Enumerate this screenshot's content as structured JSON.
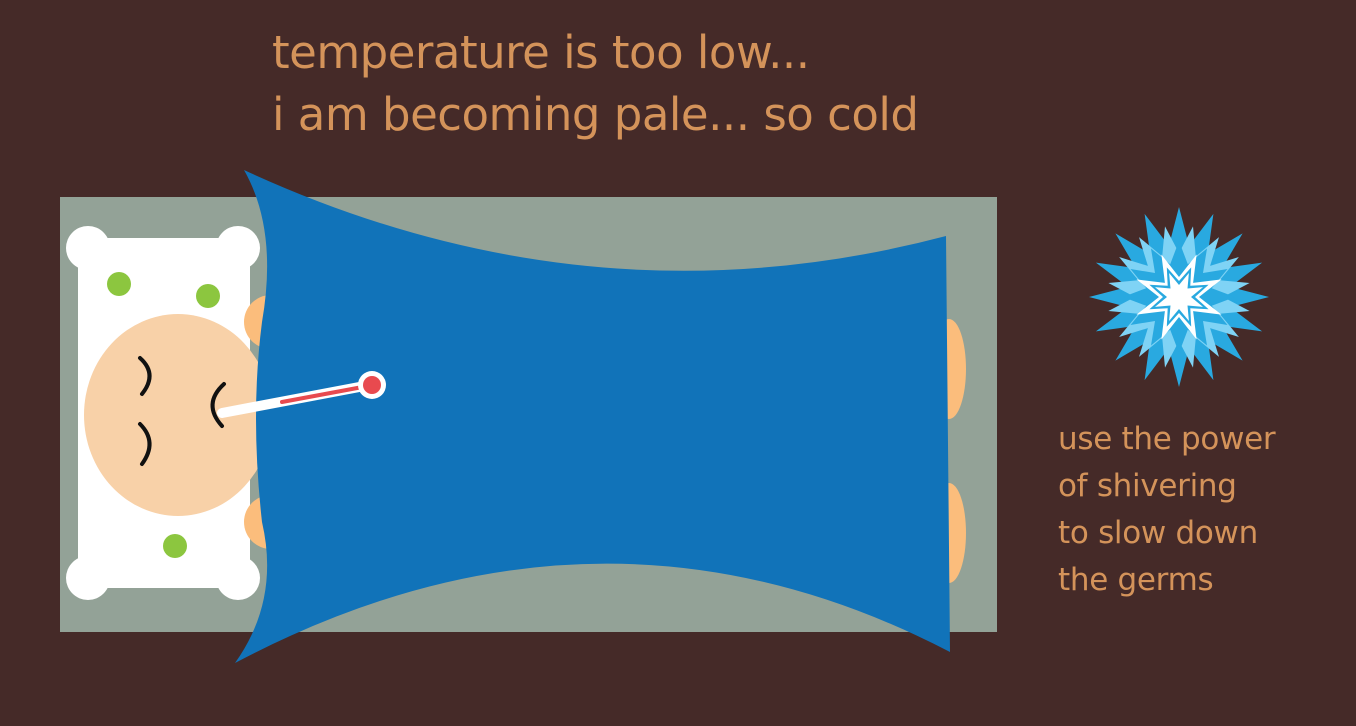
{
  "headline": {
    "line1": "temperature is too low...",
    "line2": "i am becoming pale... so cold"
  },
  "hint": {
    "line1": "use the power",
    "line2": "of shivering",
    "line3": "to slow down",
    "line4": "the germs"
  },
  "power_button": {
    "icon": "starburst-icon"
  },
  "colors": {
    "background": "#452a28",
    "text": "#d4935a",
    "bed_frame": "#93a297",
    "pillow": "#ffffff",
    "pillow_dots": "#8cc63f",
    "skin_face": "#f8d1a8",
    "skin_hands_feet": "#fbbd7c",
    "blanket": "#1173b9",
    "thermometer_bulb": "#e84a4f",
    "starburst_outer": "#29a9e0",
    "starburst_inner": "#ffffff"
  }
}
